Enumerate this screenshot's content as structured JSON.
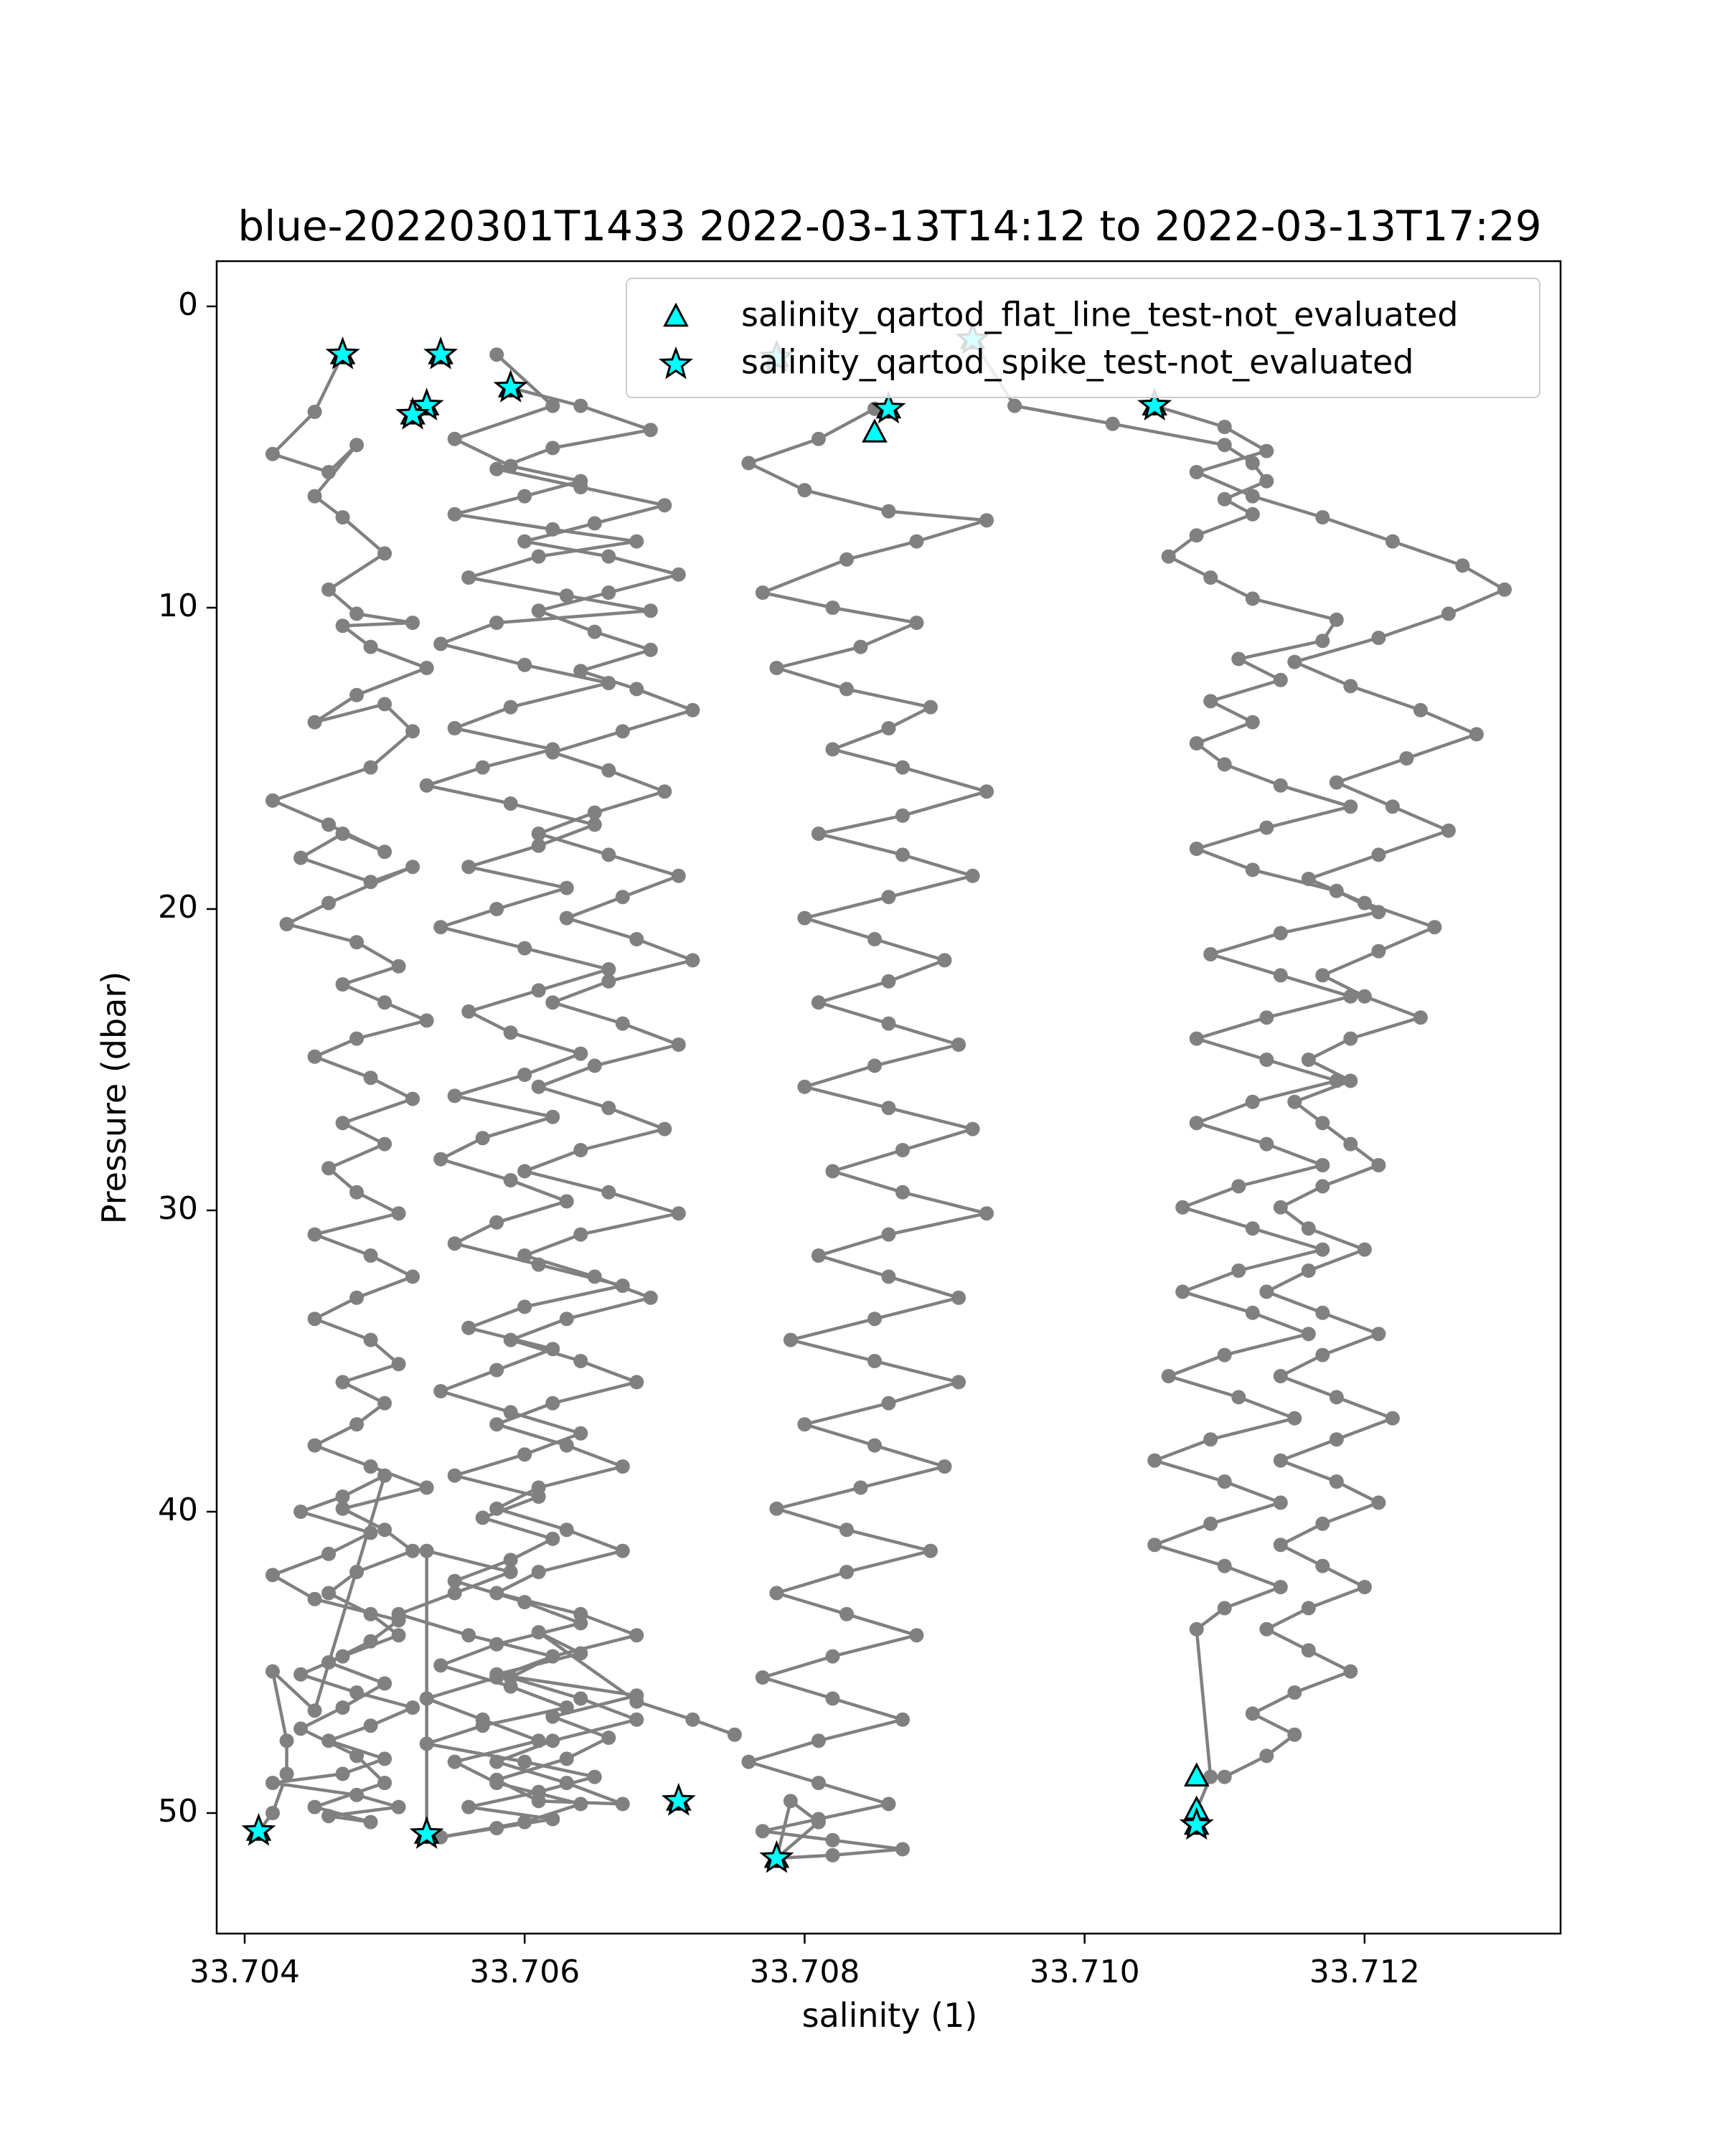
{
  "chart_data": {
    "type": "scatter",
    "title": "blue-20220301T1433 2022-03-13T14:12 to 2022-03-13T17:29",
    "xlabel": "salinity (1)",
    "ylabel": "Pressure (dbar)",
    "xlim": [
      33.7038,
      33.7134
    ],
    "ylim": [
      54.0,
      -1.5
    ],
    "y_inverted": true,
    "grid": false,
    "legend_position": "top-right",
    "x_ticks": [
      "33.704",
      "33.706",
      "33.708",
      "33.710",
      "33.712"
    ],
    "y_ticks": [
      "0",
      "10",
      "20",
      "30",
      "40",
      "50"
    ],
    "colors": {
      "profile_line": "#808080",
      "flag_marker": "#00ffff",
      "marker_edge": "#000000"
    },
    "legend": [
      {
        "label": "salinity_qartod_flat_line_test-not_evaluated",
        "marker": "triangle"
      },
      {
        "label": "salinity_qartod_spike_test-not_evaluated",
        "marker": "star"
      }
    ],
    "series": [
      {
        "x": [
          33.7047,
          33.7045,
          33.7042,
          33.7046,
          33.7048,
          33.7045,
          33.7047,
          33.705,
          33.7046,
          33.7048,
          33.7052,
          33.7047,
          33.7049,
          33.7053,
          33.7048,
          33.7045,
          33.705,
          33.7052,
          33.7049,
          33.7042,
          33.7046,
          33.705,
          33.7047,
          33.7044,
          33.7049,
          33.7052,
          33.7046,
          33.7043,
          33.7048,
          33.7051,
          33.7047,
          33.705,
          33.7053,
          33.7048,
          33.7045,
          33.7049,
          33.7052,
          33.7047,
          33.705,
          33.7046,
          33.7048,
          33.7051,
          33.7045,
          33.7049,
          33.7052,
          33.7048,
          33.7045,
          33.7049,
          33.7051,
          33.7047,
          33.705,
          33.7048,
          33.7045,
          33.7049,
          33.7053,
          33.7047,
          33.705,
          33.7052,
          33.7048,
          33.7046,
          33.7049,
          33.7051,
          33.7047,
          33.7044,
          33.7048,
          33.7052,
          33.7049,
          33.7046,
          33.705,
          33.7047,
          33.7042,
          33.7048,
          33.7051,
          33.7046,
          33.7049,
          33.7045,
          33.705,
          33.7048,
          33.7044,
          33.7047,
          33.705,
          33.7046,
          33.7049,
          33.7051,
          33.7045,
          33.7042,
          33.7046,
          33.7049,
          33.7044,
          33.7047,
          33.705,
          33.7045,
          33.7042,
          33.7043,
          33.7043,
          33.7042,
          33.7041
        ],
        "y": [
          1.6,
          3.5,
          4.9,
          5.5,
          4.6,
          6.3,
          7.0,
          8.2,
          9.4,
          10.2,
          10.5,
          10.6,
          11.3,
          12.0,
          12.9,
          13.8,
          13.2,
          14.1,
          15.3,
          16.4,
          17.2,
          18.1,
          17.5,
          18.3,
          19.1,
          18.6,
          19.8,
          20.5,
          21.1,
          21.9,
          22.5,
          23.1,
          23.7,
          24.3,
          24.9,
          25.6,
          26.3,
          27.1,
          27.8,
          28.6,
          29.4,
          30.1,
          30.8,
          31.5,
          32.2,
          32.9,
          33.6,
          34.3,
          35.1,
          35.7,
          36.4,
          37.1,
          37.8,
          38.5,
          39.2,
          39.9,
          40.6,
          41.3,
          42.0,
          42.7,
          43.4,
          44.1,
          44.8,
          45.4,
          46.0,
          46.5,
          47.1,
          47.6,
          48.2,
          48.7,
          49.0,
          49.4,
          49.8,
          50.1,
          50.3,
          49.8,
          49.0,
          48.1,
          47.2,
          46.5,
          45.7,
          45.0,
          44.3,
          43.6,
          42.9,
          42.1,
          41.4,
          40.7,
          40.0,
          39.5,
          38.8,
          46.6,
          45.3,
          47.6,
          48.7,
          50.0,
          50.6
        ]
      },
      {
        "x": [
          33.7058,
          33.7062,
          33.7055,
          33.7059,
          33.7064,
          33.706,
          33.7055,
          33.7062,
          33.7068,
          33.7061,
          33.7056,
          33.7063,
          33.7069,
          33.7058,
          33.7054,
          33.706,
          33.7066,
          33.7059,
          33.7055,
          33.7062,
          33.7057,
          33.7053,
          33.7059,
          33.7065,
          33.7061,
          33.7056,
          33.7063,
          33.7058,
          33.7054,
          33.706,
          33.7066,
          33.7061,
          33.7056,
          33.7059,
          33.7064,
          33.706,
          33.7055,
          33.7062,
          33.7057,
          33.7054,
          33.7059,
          33.7063,
          33.7058,
          33.7055,
          33.7061,
          33.7067,
          33.706,
          33.7056,
          33.7062,
          33.7058,
          33.7054,
          33.7059,
          33.7064,
          33.706,
          33.7055,
          33.7061,
          33.7057,
          33.7062,
          33.7059,
          33.7055,
          33.706,
          33.7064,
          33.7058,
          33.7054,
          33.7059,
          33.7063,
          33.7057,
          33.7053,
          33.706,
          33.7065,
          33.7061,
          33.7056,
          33.7062,
          33.7058,
          33.7054,
          33.706,
          33.7064,
          33.7058,
          33.7055,
          33.7061,
          33.7057,
          33.7053,
          33.7058,
          33.7062,
          33.7056,
          33.7051,
          33.7055,
          33.7059,
          33.7053,
          33.7053
        ],
        "y": [
          1.6,
          3.3,
          4.4,
          5.3,
          5.8,
          6.3,
          6.9,
          7.4,
          7.8,
          8.3,
          9.0,
          9.6,
          10.1,
          10.5,
          11.2,
          11.9,
          12.5,
          13.3,
          14.0,
          14.7,
          15.3,
          15.9,
          16.5,
          17.2,
          17.9,
          18.6,
          19.3,
          20.0,
          20.6,
          21.3,
          22.0,
          22.7,
          23.4,
          24.1,
          24.8,
          25.5,
          26.2,
          26.9,
          27.6,
          28.3,
          29.0,
          29.7,
          30.4,
          31.1,
          31.8,
          32.5,
          33.2,
          33.9,
          34.6,
          35.3,
          36.0,
          36.7,
          37.4,
          38.1,
          38.8,
          39.5,
          40.2,
          40.9,
          41.6,
          42.3,
          43.0,
          43.7,
          44.4,
          45.1,
          45.8,
          46.5,
          47.1,
          47.7,
          48.3,
          48.8,
          49.3,
          49.8,
          50.2,
          50.5,
          50.8,
          50.3,
          49.7,
          49.0,
          48.3,
          47.6,
          46.9,
          46.2,
          45.5,
          44.8,
          44.1,
          43.4,
          42.7,
          42.0,
          41.3,
          50.7
        ]
      },
      {
        "x": [
          33.7059,
          33.7064,
          33.7069,
          33.7062,
          33.7058,
          33.7064,
          33.707,
          33.7065,
          33.706,
          33.7066,
          33.7071,
          33.7066,
          33.7061,
          33.7065,
          33.7069,
          33.7064,
          33.7068,
          33.7072,
          33.7067,
          33.7062,
          33.7066,
          33.707,
          33.7065,
          33.7061,
          33.7066,
          33.7071,
          33.7067,
          33.7063,
          33.7068,
          33.7072,
          33.7066,
          33.7062,
          33.7067,
          33.7071,
          33.7065,
          33.7061,
          33.7066,
          33.707,
          33.7064,
          33.706,
          33.7066,
          33.7071,
          33.7064,
          33.706,
          33.7065,
          33.7069,
          33.7063,
          33.7059,
          33.7064,
          33.7068,
          33.7062,
          33.7058,
          33.7063,
          33.7067,
          33.7061,
          33.7058,
          33.7063,
          33.7067,
          33.7061,
          33.7058,
          33.7064,
          33.7068,
          33.7062,
          33.7059,
          33.7064,
          33.7068,
          33.7062,
          33.7058,
          33.7063,
          33.7067,
          33.7061,
          33.7058,
          33.7063,
          33.7066,
          33.7062,
          33.7068,
          33.7058,
          33.7064,
          33.7061,
          33.7068,
          33.7072,
          33.7075
        ],
        "y": [
          2.7,
          3.3,
          4.1,
          4.7,
          5.4,
          6.0,
          6.6,
          7.2,
          7.8,
          8.3,
          8.9,
          9.5,
          10.1,
          10.8,
          11.4,
          12.1,
          12.7,
          13.4,
          14.1,
          14.8,
          15.4,
          16.1,
          16.8,
          17.5,
          18.2,
          18.9,
          19.6,
          20.3,
          21.0,
          21.7,
          22.4,
          23.1,
          23.8,
          24.5,
          25.2,
          25.9,
          26.6,
          27.3,
          28.0,
          28.7,
          29.4,
          30.1,
          30.8,
          31.5,
          32.2,
          32.9,
          33.6,
          34.3,
          35.0,
          35.7,
          36.4,
          37.1,
          37.8,
          38.5,
          39.2,
          39.9,
          40.6,
          41.3,
          42.0,
          42.7,
          43.4,
          44.1,
          44.8,
          45.5,
          46.2,
          46.9,
          47.6,
          48.3,
          49.0,
          49.7,
          49.6,
          48.9,
          48.2,
          47.5,
          46.8,
          46.1,
          45.4,
          44.7,
          44.0,
          46.3,
          46.9,
          47.4
        ]
      },
      {
        "x": [
          33.7085,
          33.7081,
          33.7076,
          33.708,
          33.7086,
          33.7093,
          33.7088,
          33.7083,
          33.7077,
          33.7082,
          33.7088,
          33.7084,
          33.7078,
          33.7083,
          33.7089,
          33.7086,
          33.7082,
          33.7087,
          33.7093,
          33.7087,
          33.7081,
          33.7087,
          33.7092,
          33.7086,
          33.708,
          33.7085,
          33.709,
          33.7086,
          33.7081,
          33.7086,
          33.7091,
          33.7085,
          33.708,
          33.7086,
          33.7092,
          33.7087,
          33.7082,
          33.7087,
          33.7093,
          33.7086,
          33.7081,
          33.7086,
          33.7091,
          33.7085,
          33.7079,
          33.7085,
          33.7091,
          33.7086,
          33.708,
          33.7085,
          33.709,
          33.7084,
          33.7078,
          33.7083,
          33.7089,
          33.7083,
          33.7078,
          33.7083,
          33.7088,
          33.7082,
          33.7077,
          33.7082,
          33.7087,
          33.7081,
          33.7076,
          33.7081,
          33.7086,
          33.7081,
          33.7077,
          33.7082,
          33.7087,
          33.7082,
          33.7078,
          33.7081,
          33.7079,
          33.7078
        ],
        "y": [
          3.4,
          4.4,
          5.2,
          6.1,
          6.8,
          7.1,
          7.8,
          8.4,
          9.5,
          10.0,
          10.5,
          11.3,
          12.0,
          12.7,
          13.3,
          14.0,
          14.7,
          15.3,
          16.1,
          16.9,
          17.5,
          18.2,
          18.9,
          19.6,
          20.3,
          21.0,
          21.7,
          22.4,
          23.1,
          23.8,
          24.5,
          25.2,
          25.9,
          26.6,
          27.3,
          28.0,
          28.7,
          29.4,
          30.1,
          30.8,
          31.5,
          32.2,
          32.9,
          33.6,
          34.3,
          35.0,
          35.7,
          36.4,
          37.1,
          37.8,
          38.5,
          39.2,
          39.9,
          40.6,
          41.3,
          42.0,
          42.7,
          43.4,
          44.1,
          44.8,
          45.5,
          46.2,
          46.9,
          47.6,
          48.3,
          49.0,
          49.7,
          50.2,
          50.6,
          50.9,
          51.2,
          51.4,
          51.5,
          50.3,
          49.6,
          51.5
        ]
      },
      {
        "x": [
          33.7092,
          33.7095,
          33.7102,
          33.711,
          33.7112,
          33.7113,
          33.711,
          33.7112,
          33.7108,
          33.7106,
          33.7109,
          33.7112,
          33.7118,
          33.7117,
          33.7111,
          33.7114,
          33.7109,
          33.7112,
          33.7108,
          33.711,
          33.7114,
          33.7119,
          33.7113,
          33.7108,
          33.7112,
          33.7118,
          33.7121,
          33.7114,
          33.7109,
          33.7114,
          33.7119,
          33.7113,
          33.7108,
          33.7113,
          33.7118,
          33.7112,
          33.7108,
          33.7113,
          33.7117,
          33.7111,
          33.7107,
          33.7112,
          33.7117,
          33.7111,
          33.7107,
          33.7112,
          33.7116,
          33.711,
          33.7106,
          33.7111,
          33.7115,
          33.7109,
          33.7105,
          33.711,
          33.7114,
          33.7109,
          33.7105,
          33.711,
          33.7114,
          33.711,
          33.7108,
          33.7109,
          33.7108,
          33.7108
        ],
        "y": [
          1.1,
          3.3,
          3.9,
          4.6,
          5.2,
          5.8,
          6.4,
          6.9,
          7.6,
          8.3,
          9.0,
          9.7,
          10.4,
          11.1,
          11.7,
          12.4,
          13.1,
          13.8,
          14.5,
          15.2,
          15.9,
          16.6,
          17.3,
          18.0,
          18.7,
          19.4,
          20.1,
          20.8,
          21.5,
          22.2,
          22.9,
          23.6,
          24.3,
          25.0,
          25.7,
          26.4,
          27.1,
          27.8,
          28.5,
          29.2,
          29.9,
          30.6,
          31.3,
          32.0,
          32.7,
          33.4,
          34.1,
          34.8,
          35.5,
          36.2,
          36.9,
          37.6,
          38.3,
          39.0,
          39.7,
          40.4,
          41.1,
          41.8,
          42.5,
          43.2,
          43.9,
          48.8,
          49.9,
          50.4
        ]
      },
      {
        "x": [
          33.7105,
          33.711,
          33.7113,
          33.7108,
          33.7112,
          33.7117,
          33.7122,
          33.7127,
          33.713,
          33.7126,
          33.7121,
          33.7115,
          33.7119,
          33.7124,
          33.7128,
          33.7123,
          33.7118,
          33.7122,
          33.7126,
          33.7121,
          33.7116,
          33.712,
          33.7125,
          33.7121,
          33.7117,
          33.712,
          33.7124,
          33.7119,
          33.7116,
          33.7119,
          33.7115,
          33.7117,
          33.7119,
          33.7121,
          33.7117,
          33.7114,
          33.7116,
          33.712,
          33.7116,
          33.7113,
          33.7117,
          33.7121,
          33.7117,
          33.7114,
          33.7118,
          33.7122,
          33.7118,
          33.7114,
          33.7118,
          33.7121,
          33.7117,
          33.7114,
          33.7117,
          33.712,
          33.7116,
          33.7113,
          33.7116,
          33.7119,
          33.7115,
          33.7112,
          33.7115,
          33.7113,
          33.711
        ],
        "y": [
          3.3,
          4.0,
          4.8,
          5.5,
          6.3,
          7.0,
          7.8,
          8.6,
          9.4,
          10.2,
          11.0,
          11.8,
          12.6,
          13.4,
          14.2,
          15.0,
          15.8,
          16.6,
          17.4,
          18.2,
          19.0,
          19.8,
          20.6,
          21.4,
          22.2,
          22.9,
          23.6,
          24.3,
          25.0,
          25.7,
          26.4,
          27.1,
          27.8,
          28.5,
          29.2,
          29.9,
          30.6,
          31.3,
          32.0,
          32.7,
          33.4,
          34.1,
          34.8,
          35.5,
          36.2,
          36.9,
          37.6,
          38.3,
          39.0,
          39.7,
          40.4,
          41.1,
          41.8,
          42.5,
          43.2,
          43.9,
          44.6,
          45.3,
          46.0,
          46.7,
          47.4,
          48.1,
          48.8
        ]
      }
    ],
    "flagged_points": {
      "flat_line_not_evaluated": {
        "x": [
          33.7047,
          33.7054,
          33.7059,
          33.7053,
          33.7052,
          33.7078,
          33.7086,
          33.7085,
          33.7092,
          33.7105,
          33.7041,
          33.7053,
          33.7071,
          33.7078,
          33.7108,
          33.7108,
          33.7108
        ],
        "y": [
          1.6,
          1.6,
          2.7,
          3.3,
          3.6,
          1.7,
          3.4,
          4.2,
          1.1,
          3.3,
          50.6,
          50.7,
          49.6,
          51.5,
          48.8,
          49.9,
          50.4
        ]
      },
      "spike_not_evaluated": {
        "x": [
          33.7047,
          33.7054,
          33.7059,
          33.7053,
          33.7052,
          33.7078,
          33.7086,
          33.7092,
          33.7105,
          33.7041,
          33.7053,
          33.7071,
          33.7078,
          33.7108
        ],
        "y": [
          1.6,
          1.6,
          2.7,
          3.3,
          3.6,
          1.7,
          3.4,
          1.1,
          3.3,
          50.6,
          50.7,
          49.6,
          51.5,
          50.4
        ]
      }
    }
  }
}
